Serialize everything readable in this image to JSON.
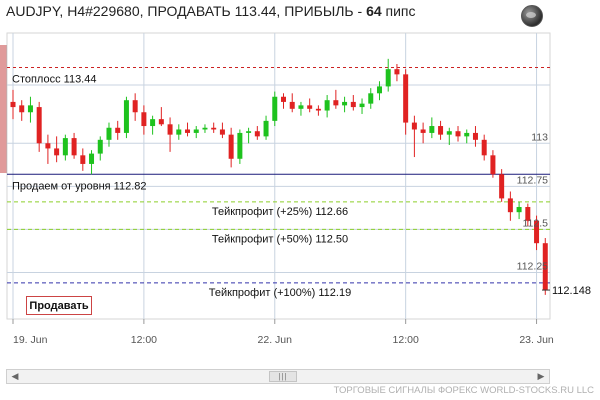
{
  "header": {
    "title_prefix": "AUDJPY, H4#229680, ПРОДАВАТЬ 113.44, ПРИБЫЛЬ - ",
    "profit_value": "64",
    "title_suffix": " пипс"
  },
  "buttons": {
    "sell_label": "Продавать"
  },
  "footer": {
    "text": "ТОРГОВЫЕ СИГНАЛЫ ФОРЕКС WORLD-STOCKS.RU LLC"
  },
  "icons": {
    "globe": "globe-icon",
    "scroll_left": "arrow-left-icon",
    "scroll_right": "arrow-right-icon",
    "scroll_grip": "grip-icon"
  },
  "colors": {
    "bull": "#1ec21e",
    "bear": "#e02222",
    "stoploss": "#cc2222",
    "entry": "#1a1a7a",
    "takeprofit": "#8ccf2a",
    "tp_final": "#3333aa",
    "grid": "#c8d3e0"
  },
  "chart_data": {
    "type": "candlestick",
    "ylim": [
      111.98,
      113.64
    ],
    "y_ticks": [
      {
        "value": 113.0,
        "label": "113"
      },
      {
        "value": 112.75,
        "label": "112.75"
      },
      {
        "value": 112.5,
        "label": "112.5"
      },
      {
        "value": 112.25,
        "label": "112.25"
      }
    ],
    "current_price": {
      "value": 112.148,
      "label": "112.148"
    },
    "x_ticks": [
      {
        "index": 0,
        "label": "19. Jun"
      },
      {
        "index": 15,
        "label": "12:00"
      },
      {
        "index": 30,
        "label": "22. Jun"
      },
      {
        "index": 45,
        "label": "12:00"
      },
      {
        "index": 60,
        "label": "23. Jun"
      }
    ],
    "levels": [
      {
        "value": 113.44,
        "label": "Стоплосс 113.44",
        "style": "stoploss",
        "label_pos": "left"
      },
      {
        "value": 112.82,
        "label": "Продаем от уровня 112.82",
        "style": "entry",
        "label_pos": "left"
      },
      {
        "value": 112.66,
        "label": "Тейкпрофит (+25%) 112.66",
        "style": "takeprofit",
        "label_pos": "center"
      },
      {
        "value": 112.5,
        "label": "Тейкпрофит (+50%) 112.50",
        "style": "takeprofit",
        "label_pos": "center"
      },
      {
        "value": 112.19,
        "label": "Тейкпрофит (+100%) 112.19",
        "style": "tp_final",
        "label_pos": "center"
      }
    ],
    "candles": [
      {
        "o": 113.24,
        "h": 113.31,
        "l": 113.14,
        "c": 113.21
      },
      {
        "o": 113.22,
        "h": 113.25,
        "l": 113.13,
        "c": 113.18
      },
      {
        "o": 113.18,
        "h": 113.27,
        "l": 113.12,
        "c": 113.22
      },
      {
        "o": 113.21,
        "h": 113.24,
        "l": 112.95,
        "c": 113.0
      },
      {
        "o": 113.0,
        "h": 113.05,
        "l": 112.88,
        "c": 112.97
      },
      {
        "o": 112.97,
        "h": 113.04,
        "l": 112.89,
        "c": 112.93
      },
      {
        "o": 112.93,
        "h": 113.05,
        "l": 112.9,
        "c": 113.03
      },
      {
        "o": 113.03,
        "h": 113.06,
        "l": 112.91,
        "c": 112.93
      },
      {
        "o": 112.93,
        "h": 112.97,
        "l": 112.84,
        "c": 112.88
      },
      {
        "o": 112.88,
        "h": 112.96,
        "l": 112.82,
        "c": 112.94
      },
      {
        "o": 112.94,
        "h": 113.04,
        "l": 112.9,
        "c": 113.02
      },
      {
        "o": 113.02,
        "h": 113.12,
        "l": 112.98,
        "c": 113.09
      },
      {
        "o": 113.09,
        "h": 113.13,
        "l": 113.02,
        "c": 113.06
      },
      {
        "o": 113.06,
        "h": 113.27,
        "l": 113.03,
        "c": 113.25
      },
      {
        "o": 113.25,
        "h": 113.29,
        "l": 113.13,
        "c": 113.18
      },
      {
        "o": 113.18,
        "h": 113.22,
        "l": 113.05,
        "c": 113.1
      },
      {
        "o": 113.1,
        "h": 113.16,
        "l": 113.05,
        "c": 113.14
      },
      {
        "o": 113.14,
        "h": 113.21,
        "l": 113.1,
        "c": 113.11
      },
      {
        "o": 113.11,
        "h": 113.15,
        "l": 112.95,
        "c": 113.05
      },
      {
        "o": 113.05,
        "h": 113.11,
        "l": 113.02,
        "c": 113.08
      },
      {
        "o": 113.08,
        "h": 113.12,
        "l": 113.04,
        "c": 113.06
      },
      {
        "o": 113.06,
        "h": 113.1,
        "l": 113.03,
        "c": 113.08
      },
      {
        "o": 113.08,
        "h": 113.11,
        "l": 113.06,
        "c": 113.09
      },
      {
        "o": 113.09,
        "h": 113.12,
        "l": 113.06,
        "c": 113.08
      },
      {
        "o": 113.08,
        "h": 113.12,
        "l": 113.03,
        "c": 113.05
      },
      {
        "o": 113.05,
        "h": 113.09,
        "l": 112.86,
        "c": 112.91
      },
      {
        "o": 112.91,
        "h": 113.08,
        "l": 112.88,
        "c": 113.06
      },
      {
        "o": 113.06,
        "h": 113.09,
        "l": 113.0,
        "c": 113.07
      },
      {
        "o": 113.07,
        "h": 113.1,
        "l": 113.02,
        "c": 113.04
      },
      {
        "o": 113.04,
        "h": 113.16,
        "l": 113.02,
        "c": 113.13
      },
      {
        "o": 113.13,
        "h": 113.3,
        "l": 113.1,
        "c": 113.27
      },
      {
        "o": 113.27,
        "h": 113.29,
        "l": 113.2,
        "c": 113.24
      },
      {
        "o": 113.24,
        "h": 113.29,
        "l": 113.18,
        "c": 113.2
      },
      {
        "o": 113.2,
        "h": 113.24,
        "l": 113.16,
        "c": 113.22
      },
      {
        "o": 113.22,
        "h": 113.26,
        "l": 113.18,
        "c": 113.2
      },
      {
        "o": 113.2,
        "h": 113.22,
        "l": 113.16,
        "c": 113.19
      },
      {
        "o": 113.19,
        "h": 113.28,
        "l": 113.15,
        "c": 113.25
      },
      {
        "o": 113.25,
        "h": 113.31,
        "l": 113.2,
        "c": 113.22
      },
      {
        "o": 113.22,
        "h": 113.27,
        "l": 113.18,
        "c": 113.24
      },
      {
        "o": 113.24,
        "h": 113.28,
        "l": 113.19,
        "c": 113.21
      },
      {
        "o": 113.21,
        "h": 113.26,
        "l": 113.17,
        "c": 113.23
      },
      {
        "o": 113.23,
        "h": 113.32,
        "l": 113.2,
        "c": 113.29
      },
      {
        "o": 113.29,
        "h": 113.36,
        "l": 113.25,
        "c": 113.33
      },
      {
        "o": 113.33,
        "h": 113.49,
        "l": 113.3,
        "c": 113.43
      },
      {
        "o": 113.43,
        "h": 113.46,
        "l": 113.36,
        "c": 113.4
      },
      {
        "o": 113.4,
        "h": 113.43,
        "l": 113.05,
        "c": 113.12
      },
      {
        "o": 113.12,
        "h": 113.16,
        "l": 112.92,
        "c": 113.08
      },
      {
        "o": 113.08,
        "h": 113.12,
        "l": 113.0,
        "c": 113.06
      },
      {
        "o": 113.06,
        "h": 113.15,
        "l": 113.03,
        "c": 113.1
      },
      {
        "o": 113.1,
        "h": 113.13,
        "l": 113.02,
        "c": 113.05
      },
      {
        "o": 113.05,
        "h": 113.09,
        "l": 112.99,
        "c": 113.07
      },
      {
        "o": 113.07,
        "h": 113.1,
        "l": 113.01,
        "c": 113.04
      },
      {
        "o": 113.04,
        "h": 113.08,
        "l": 113.0,
        "c": 113.06
      },
      {
        "o": 113.06,
        "h": 113.1,
        "l": 112.98,
        "c": 113.02
      },
      {
        "o": 113.02,
        "h": 113.05,
        "l": 112.9,
        "c": 112.93
      },
      {
        "o": 112.93,
        "h": 112.96,
        "l": 112.8,
        "c": 112.82
      },
      {
        "o": 112.82,
        "h": 112.85,
        "l": 112.66,
        "c": 112.68
      },
      {
        "o": 112.68,
        "h": 112.72,
        "l": 112.55,
        "c": 112.6
      },
      {
        "o": 112.6,
        "h": 112.66,
        "l": 112.56,
        "c": 112.63
      },
      {
        "o": 112.63,
        "h": 112.65,
        "l": 112.52,
        "c": 112.55
      },
      {
        "o": 112.55,
        "h": 112.58,
        "l": 112.38,
        "c": 112.42
      },
      {
        "o": 112.42,
        "h": 112.45,
        "l": 112.12,
        "c": 112.15
      }
    ]
  }
}
